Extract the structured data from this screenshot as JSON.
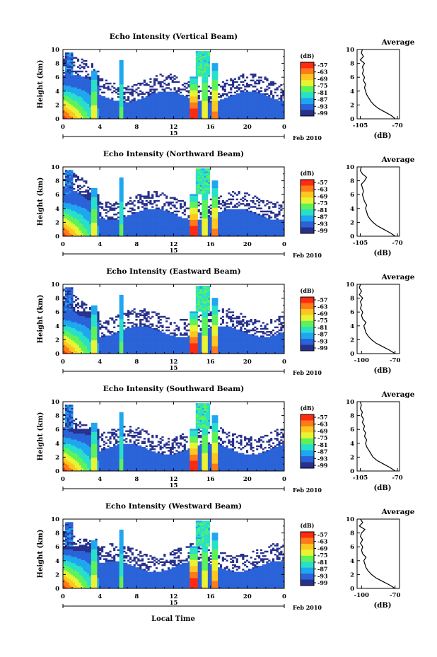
{
  "figure": {
    "xlabel": "Local Time",
    "date_label": "Feb 2010",
    "date_day": "15"
  },
  "colorbar": {
    "unit_label": "(dB)",
    "tick_labels": [
      "-57",
      "-63",
      "-69",
      "-75",
      "-81",
      "-87",
      "-93",
      "-99"
    ],
    "stops": [
      "#ff2a10",
      "#ff7a18",
      "#ffc61f",
      "#e8f432",
      "#5ef25a",
      "#28e0c8",
      "#1fa6f0",
      "#2a62d8",
      "#27308c"
    ]
  },
  "chart_data": [
    {
      "type": "heatmap",
      "title": "Echo Intensity (Vertical Beam)",
      "ylabel": "Height (km)",
      "xlim": [
        0,
        24
      ],
      "ylim": [
        0,
        10
      ],
      "x_ticks": [
        "0",
        "4",
        "8",
        "12",
        "16",
        "20",
        "0"
      ],
      "y_ticks": [
        "0",
        "2",
        "4",
        "6",
        "8",
        "10"
      ],
      "avg_title": "Average",
      "avg_xlabel": "(dB)",
      "avg_xticks": [
        "-105",
        "-70"
      ],
      "avg_xlim": [
        -108,
        -68
      ],
      "avg_profile": [
        [
          0,
          -72
        ],
        [
          0.5,
          -76
        ],
        [
          1,
          -82
        ],
        [
          1.5,
          -88
        ],
        [
          2,
          -92
        ],
        [
          2.5,
          -95
        ],
        [
          3,
          -97
        ],
        [
          3.5,
          -99
        ],
        [
          4,
          -100
        ],
        [
          4.5,
          -101
        ],
        [
          5,
          -100
        ],
        [
          5.5,
          -102
        ],
        [
          6,
          -101
        ],
        [
          6.5,
          -103
        ],
        [
          7,
          -102
        ],
        [
          7.5,
          -103
        ],
        [
          8,
          -101
        ],
        [
          8.5,
          -105
        ],
        [
          9,
          -102
        ],
        [
          9.5,
          -104
        ],
        [
          10,
          -103
        ]
      ]
    },
    {
      "type": "heatmap",
      "title": "Echo Intensity (Northward Beam)",
      "ylabel": "Height (km)",
      "xlim": [
        0,
        24
      ],
      "ylim": [
        0,
        10
      ],
      "x_ticks": [
        "0",
        "4",
        "8",
        "12",
        "16",
        "20",
        "0"
      ],
      "y_ticks": [
        "0",
        "2",
        "4",
        "6",
        "8",
        "10"
      ],
      "avg_title": "Average",
      "avg_xlabel": "(dB)",
      "avg_xticks": [
        "-105",
        "-70"
      ],
      "avg_xlim": [
        -108,
        -68
      ],
      "avg_profile": [
        [
          0,
          -72
        ],
        [
          0.5,
          -77
        ],
        [
          1,
          -83
        ],
        [
          1.5,
          -89
        ],
        [
          2,
          -93
        ],
        [
          2.5,
          -96
        ],
        [
          3,
          -98
        ],
        [
          3.5,
          -99
        ],
        [
          4,
          -100
        ],
        [
          4.5,
          -99
        ],
        [
          5,
          -101
        ],
        [
          5.5,
          -102
        ],
        [
          6,
          -103
        ],
        [
          6.5,
          -102
        ],
        [
          7,
          -103
        ],
        [
          7.5,
          -104
        ],
        [
          8,
          -101
        ],
        [
          8.5,
          -99
        ],
        [
          9,
          -103
        ],
        [
          9.5,
          -105
        ],
        [
          10,
          -104
        ]
      ]
    },
    {
      "type": "heatmap",
      "title": "Echo Intensity (Eastward Beam)",
      "ylabel": "Height (km)",
      "xlim": [
        0,
        24
      ],
      "ylim": [
        0,
        10
      ],
      "x_ticks": [
        "0",
        "4",
        "8",
        "12",
        "16",
        "20",
        "0"
      ],
      "y_ticks": [
        "0",
        "2",
        "4",
        "6",
        "8",
        "10"
      ],
      "avg_title": "Average",
      "avg_xlabel": "(dB)",
      "avg_xticks": [
        "-100",
        "-70"
      ],
      "avg_xlim": [
        -104,
        -66
      ],
      "avg_profile": [
        [
          0,
          -70
        ],
        [
          0.5,
          -75
        ],
        [
          1,
          -81
        ],
        [
          1.5,
          -87
        ],
        [
          2,
          -91
        ],
        [
          2.5,
          -94
        ],
        [
          3,
          -96
        ],
        [
          3.5,
          -97
        ],
        [
          4,
          -98
        ],
        [
          4.5,
          -96
        ],
        [
          5,
          -99
        ],
        [
          5.5,
          -100
        ],
        [
          6,
          -99
        ],
        [
          6.5,
          -101
        ],
        [
          7,
          -100
        ],
        [
          7.5,
          -101
        ],
        [
          8,
          -99
        ],
        [
          8.5,
          -102
        ],
        [
          9,
          -100
        ],
        [
          9.5,
          -102
        ],
        [
          10,
          -101
        ]
      ]
    },
    {
      "type": "heatmap",
      "title": "Echo Intensity (Southward Beam)",
      "ylabel": "Height (km)",
      "xlim": [
        0,
        24
      ],
      "ylim": [
        0,
        10
      ],
      "x_ticks": [
        "0",
        "4",
        "8",
        "12",
        "16",
        "20",
        "0"
      ],
      "y_ticks": [
        "0",
        "2",
        "4",
        "6",
        "8",
        "10"
      ],
      "avg_title": "Average",
      "avg_xlabel": "(dB)",
      "avg_xticks": [
        "-105",
        "-70"
      ],
      "avg_xlim": [
        -108,
        -68
      ],
      "avg_profile": [
        [
          0,
          -72
        ],
        [
          0.5,
          -77
        ],
        [
          1,
          -83
        ],
        [
          1.5,
          -89
        ],
        [
          2,
          -93
        ],
        [
          2.5,
          -95
        ],
        [
          3,
          -97
        ],
        [
          3.5,
          -99
        ],
        [
          4,
          -100
        ],
        [
          4.5,
          -99
        ],
        [
          5,
          -101
        ],
        [
          5.5,
          -100
        ],
        [
          6,
          -102
        ],
        [
          6.5,
          -101
        ],
        [
          7,
          -103
        ],
        [
          7.5,
          -102
        ],
        [
          8,
          -104
        ],
        [
          8.5,
          -103
        ],
        [
          9,
          -105
        ],
        [
          9.5,
          -104
        ],
        [
          10,
          -105
        ]
      ]
    },
    {
      "type": "heatmap",
      "title": "Echo Intensity (Westward Beam)",
      "ylabel": "Height (km)",
      "xlim": [
        0,
        24
      ],
      "ylim": [
        0,
        10
      ],
      "x_ticks": [
        "0",
        "4",
        "8",
        "12",
        "16",
        "20",
        "0"
      ],
      "y_ticks": [
        "0",
        "2",
        "4",
        "6",
        "8",
        "10"
      ],
      "avg_title": "Average",
      "avg_xlabel": "(dB)",
      "avg_xticks": [
        "-100",
        "-70"
      ],
      "avg_xlim": [
        -104,
        -66
      ],
      "avg_profile": [
        [
          0,
          -70
        ],
        [
          0.5,
          -75
        ],
        [
          1,
          -81
        ],
        [
          1.5,
          -87
        ],
        [
          2,
          -91
        ],
        [
          2.5,
          -94
        ],
        [
          3,
          -96
        ],
        [
          3.5,
          -97
        ],
        [
          4,
          -98
        ],
        [
          4.5,
          -96
        ],
        [
          5,
          -99
        ],
        [
          5.5,
          -100
        ],
        [
          6,
          -99
        ],
        [
          6.5,
          -101
        ],
        [
          7,
          -99
        ],
        [
          7.5,
          -101
        ],
        [
          8,
          -100
        ],
        [
          8.5,
          -97
        ],
        [
          9,
          -102
        ],
        [
          9.5,
          -99
        ],
        [
          10,
          -101
        ]
      ]
    }
  ]
}
